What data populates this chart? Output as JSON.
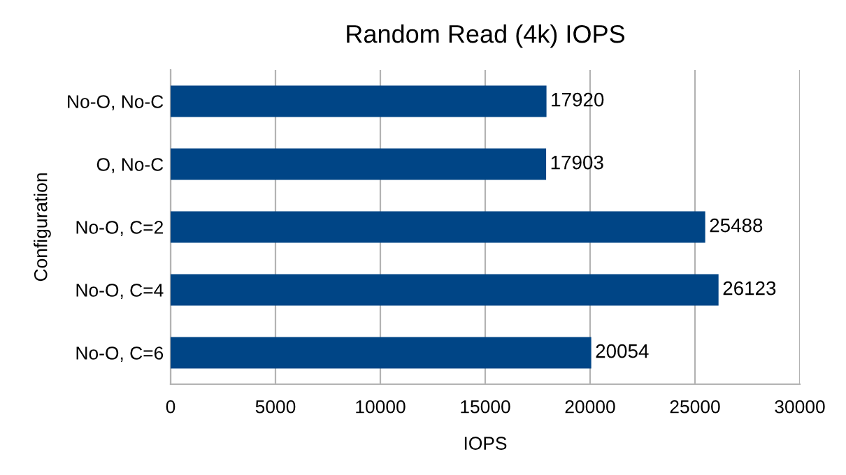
{
  "chart_data": {
    "type": "bar",
    "orientation": "horizontal",
    "title": "Random Read (4k) IOPS",
    "xlabel": "IOPS",
    "ylabel": "Configuration",
    "categories": [
      "No-O, No-C",
      "O, No-C",
      "No-O, C=2",
      "No-O, C=4",
      "No-O, C=6"
    ],
    "values": [
      17920,
      17903,
      25488,
      26123,
      20054
    ],
    "color": "#004586",
    "xlim": [
      0,
      30000
    ],
    "xticks": [
      0,
      5000,
      10000,
      15000,
      20000,
      25000,
      30000
    ],
    "grid": "x",
    "data_labels": true
  }
}
